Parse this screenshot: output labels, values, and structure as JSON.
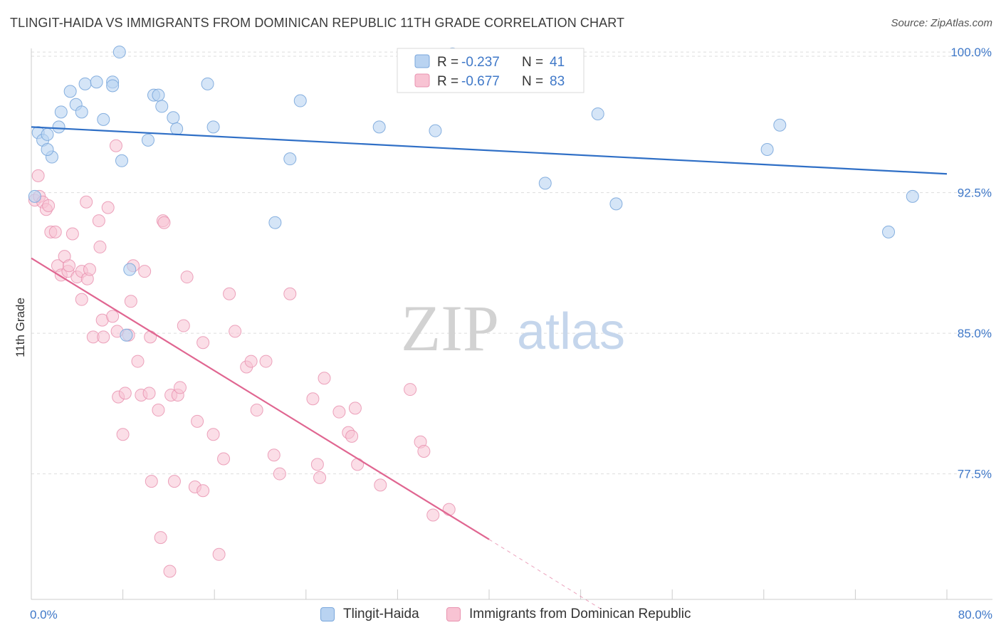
{
  "header": {
    "title": "TLINGIT-HAIDA VS IMMIGRANTS FROM DOMINICAN REPUBLIC 11TH GRADE CORRELATION CHART",
    "source": "Source: ZipAtlas.com"
  },
  "watermark": {
    "zip": "ZIP",
    "atlas": "atlas"
  },
  "colors": {
    "blue_fill": "#b9d3f1",
    "blue_stroke": "#7aa7dc",
    "blue_line": "#2f6fc6",
    "pink_fill": "#f8c3d3",
    "pink_stroke": "#e993b0",
    "pink_line": "#e06691",
    "axis_text": "#3f78c8",
    "grid": "#dddddd"
  },
  "stats_legend": [
    {
      "r_label": "R =",
      "r_value": "-0.237",
      "n_label": "N =",
      "n_value": "41"
    },
    {
      "r_label": "R =",
      "r_value": "-0.677",
      "n_label": "N =",
      "n_value": "83"
    }
  ],
  "chart_data": {
    "type": "scatter",
    "title": "TLINGIT-HAIDA VS IMMIGRANTS FROM DOMINICAN REPUBLIC 11TH GRADE CORRELATION CHART",
    "xlabel": "",
    "ylabel": "11th Grade",
    "xlim": [
      0,
      80
    ],
    "ylim": [
      70.8,
      100.8
    ],
    "x_tick_labels": [
      "0.0%",
      "80.0%"
    ],
    "y_ticks": [
      77.5,
      85.0,
      92.5,
      100.0
    ],
    "y_tick_labels": [
      "77.5%",
      "85.0%",
      "92.5%",
      "100.0%"
    ],
    "grid": true,
    "legend_position": "bottom",
    "series": [
      {
        "name": "Tlingit-Haida",
        "color": "#b9d3f1",
        "trend": {
          "x": [
            0,
            80
          ],
          "y": [
            96.0,
            93.5
          ]
        },
        "points": [
          [
            0.3,
            92.3
          ],
          [
            0.6,
            95.7
          ],
          [
            1.0,
            95.3
          ],
          [
            1.4,
            95.6
          ],
          [
            1.8,
            94.4
          ],
          [
            1.4,
            94.8
          ],
          [
            2.4,
            96.0
          ],
          [
            2.6,
            96.8
          ],
          [
            3.4,
            97.9
          ],
          [
            3.9,
            97.2
          ],
          [
            4.4,
            96.8
          ],
          [
            4.7,
            98.3
          ],
          [
            5.7,
            98.4
          ],
          [
            6.3,
            96.4
          ],
          [
            7.1,
            98.4
          ],
          [
            7.1,
            98.2
          ],
          [
            7.7,
            100.0
          ],
          [
            7.9,
            94.2
          ],
          [
            8.3,
            84.9
          ],
          [
            8.6,
            88.4
          ],
          [
            10.2,
            95.3
          ],
          [
            10.7,
            97.7
          ],
          [
            11.1,
            97.7
          ],
          [
            11.4,
            97.1
          ],
          [
            12.4,
            96.5
          ],
          [
            12.7,
            95.9
          ],
          [
            15.4,
            98.3
          ],
          [
            15.9,
            96.0
          ],
          [
            21.3,
            90.9
          ],
          [
            22.6,
            94.3
          ],
          [
            23.5,
            97.4
          ],
          [
            30.4,
            96.0
          ],
          [
            35.3,
            95.8
          ],
          [
            36.8,
            99.9
          ],
          [
            44.9,
            93.0
          ],
          [
            49.5,
            96.7
          ],
          [
            51.1,
            91.9
          ],
          [
            64.3,
            94.8
          ],
          [
            65.4,
            96.1
          ],
          [
            74.9,
            90.4
          ],
          [
            77.0,
            92.3
          ]
        ]
      },
      {
        "name": "Immigrants from Dominican Republic",
        "color": "#f8c3d3",
        "trend": {
          "x": [
            0,
            40
          ],
          "y": [
            89.0,
            74.0
          ]
        },
        "trend_dashed": {
          "x": [
            40,
            50
          ],
          "y": [
            74.0,
            70.2
          ]
        },
        "points": [
          [
            0.3,
            92.1
          ],
          [
            0.6,
            93.4
          ],
          [
            0.7,
            92.3
          ],
          [
            1.0,
            92.0
          ],
          [
            1.3,
            91.6
          ],
          [
            1.5,
            91.8
          ],
          [
            1.7,
            90.4
          ],
          [
            2.1,
            90.4
          ],
          [
            2.3,
            88.6
          ],
          [
            2.6,
            88.1
          ],
          [
            2.9,
            89.1
          ],
          [
            3.2,
            88.3
          ],
          [
            3.3,
            88.6
          ],
          [
            3.6,
            90.3
          ],
          [
            4.0,
            88.0
          ],
          [
            4.4,
            88.3
          ],
          [
            4.4,
            86.8
          ],
          [
            4.8,
            92.0
          ],
          [
            4.9,
            87.9
          ],
          [
            5.1,
            88.4
          ],
          [
            5.4,
            84.8
          ],
          [
            5.9,
            91.0
          ],
          [
            6.0,
            89.6
          ],
          [
            6.2,
            85.7
          ],
          [
            6.3,
            84.8
          ],
          [
            6.7,
            91.7
          ],
          [
            7.1,
            85.9
          ],
          [
            7.4,
            95.0
          ],
          [
            7.5,
            85.1
          ],
          [
            7.6,
            81.6
          ],
          [
            8.0,
            79.6
          ],
          [
            8.2,
            81.8
          ],
          [
            8.5,
            84.9
          ],
          [
            8.7,
            86.7
          ],
          [
            8.9,
            88.6
          ],
          [
            9.3,
            83.5
          ],
          [
            9.6,
            81.7
          ],
          [
            9.9,
            88.3
          ],
          [
            10.3,
            81.8
          ],
          [
            10.4,
            84.8
          ],
          [
            10.5,
            77.1
          ],
          [
            11.1,
            80.9
          ],
          [
            11.3,
            74.1
          ],
          [
            11.5,
            91.0
          ],
          [
            11.6,
            90.9
          ],
          [
            12.1,
            72.3
          ],
          [
            12.2,
            81.7
          ],
          [
            12.5,
            77.1
          ],
          [
            12.8,
            81.7
          ],
          [
            13.0,
            82.1
          ],
          [
            13.3,
            85.4
          ],
          [
            13.6,
            88.0
          ],
          [
            14.3,
            76.8
          ],
          [
            14.5,
            80.3
          ],
          [
            15.0,
            76.6
          ],
          [
            15.0,
            84.5
          ],
          [
            15.9,
            79.6
          ],
          [
            16.4,
            73.2
          ],
          [
            16.8,
            78.3
          ],
          [
            17.3,
            87.1
          ],
          [
            17.8,
            85.1
          ],
          [
            18.8,
            83.2
          ],
          [
            19.2,
            83.5
          ],
          [
            19.7,
            80.9
          ],
          [
            20.5,
            83.5
          ],
          [
            21.2,
            78.5
          ],
          [
            21.7,
            77.5
          ],
          [
            22.6,
            87.1
          ],
          [
            24.6,
            81.5
          ],
          [
            25.0,
            78.0
          ],
          [
            25.2,
            77.3
          ],
          [
            25.6,
            82.6
          ],
          [
            26.9,
            80.8
          ],
          [
            27.7,
            79.7
          ],
          [
            28.0,
            79.5
          ],
          [
            28.3,
            81.0
          ],
          [
            28.5,
            78.0
          ],
          [
            30.5,
            76.9
          ],
          [
            33.1,
            82.0
          ],
          [
            34.0,
            79.2
          ],
          [
            34.3,
            78.7
          ],
          [
            35.1,
            75.3
          ],
          [
            36.5,
            75.6
          ]
        ]
      }
    ]
  }
}
